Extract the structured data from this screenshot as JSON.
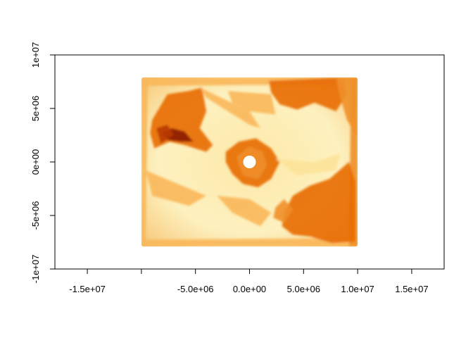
{
  "chart_data": {
    "type": "heatmap",
    "title": "",
    "xlabel": "",
    "ylabel": "",
    "xlim": [
      -18000000,
      18000000
    ],
    "ylim": [
      -10000000,
      10000000
    ],
    "x_ticks": [
      {
        "value": -15000000,
        "label": "-1.5e+07"
      },
      {
        "value": -10000000,
        "label": ""
      },
      {
        "value": -5000000,
        "label": "-5.0e+06"
      },
      {
        "value": 0,
        "label": "0.0e+00"
      },
      {
        "value": 5000000,
        "label": "5.0e+06"
      },
      {
        "value": 10000000,
        "label": "1.0e+07"
      },
      {
        "value": 15000000,
        "label": "1.5e+07"
      }
    ],
    "y_ticks": [
      {
        "value": -10000000,
        "label": "-1e+07"
      },
      {
        "value": -5000000,
        "label": "-5e+06"
      },
      {
        "value": 0,
        "label": "0e+00"
      },
      {
        "value": 5000000,
        "label": "5e+06"
      },
      {
        "value": 10000000,
        "label": "1e+07"
      }
    ],
    "raster_extent": {
      "xmin": -10000000,
      "xmax": 10000000,
      "ymin": -7900000,
      "ymax": 7900000
    },
    "color_scale": [
      "#fff6c4",
      "#fde39a",
      "#f9b75a",
      "#f0902a",
      "#e86b00",
      "#b83a00",
      "#8a1a00"
    ],
    "grid": false,
    "legend": "none"
  }
}
